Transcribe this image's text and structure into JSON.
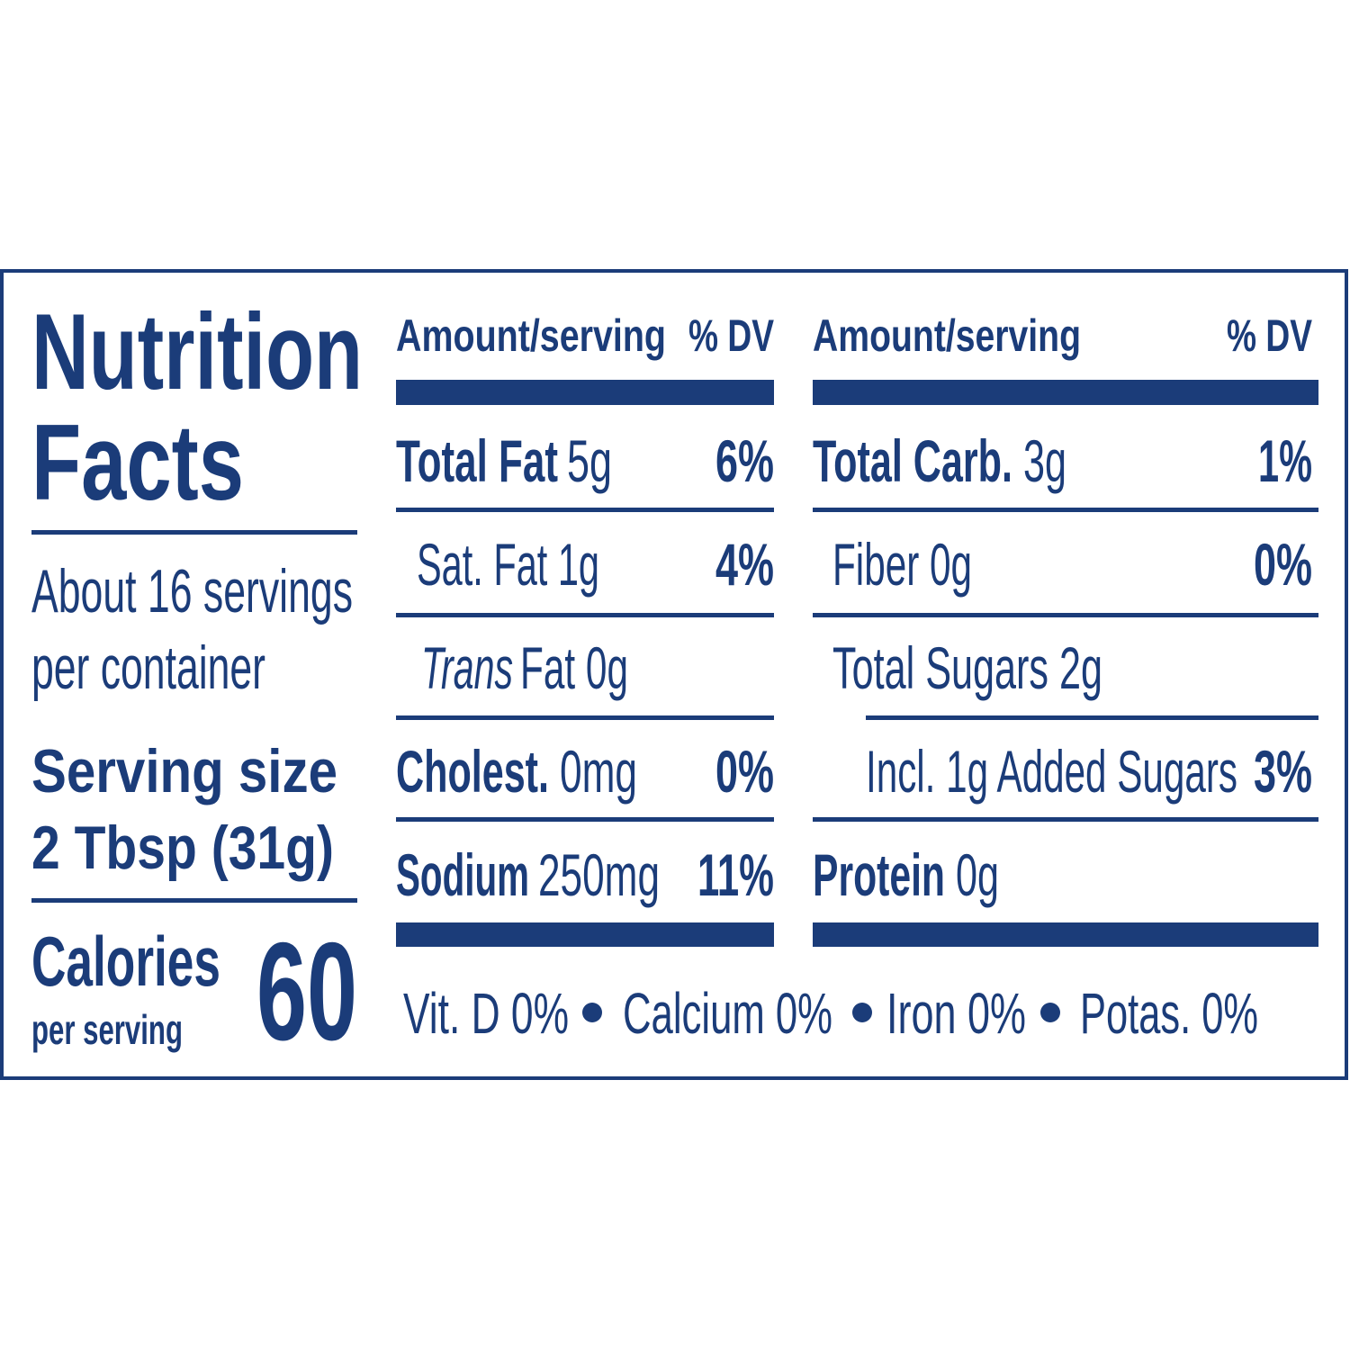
{
  "title": [
    "Nutrition",
    "Facts"
  ],
  "servings": [
    "About 16 servings",
    "per container"
  ],
  "serving_size": {
    "label": "Serving size",
    "amount": "2 Tbsp (31g)"
  },
  "calories": {
    "label": "Calories",
    "sublabel": "per serving",
    "value": "60"
  },
  "columns": [
    {
      "header": {
        "amount": "Amount/serving",
        "dv": "% DV"
      },
      "rows": [
        {
          "name": "Total Fat",
          "amount": "5g",
          "dv": "6%"
        },
        {
          "name": "Sat. Fat 1g",
          "dv": "4%"
        },
        {
          "prefix": "Trans",
          "name": "Fat 0g"
        },
        {
          "name": "Cholest.",
          "amount": "0mg",
          "dv": "0%"
        },
        {
          "name": "Sodium",
          "amount": "250mg",
          "dv": "11%"
        }
      ]
    },
    {
      "header": {
        "amount": "Amount/serving",
        "dv": "% DV"
      },
      "rows": [
        {
          "name": "Total Carb.",
          "amount": "3g",
          "dv": "1%"
        },
        {
          "name": "Fiber 0g",
          "dv": "0%"
        },
        {
          "name": "Total Sugars 2g"
        },
        {
          "name": "Incl. 1g Added Sugars",
          "dv": "3%"
        },
        {
          "name": "Protein",
          "amount": "0g"
        }
      ]
    }
  ],
  "footer": [
    "Vit. D 0%",
    "Calcium 0%",
    "Iron 0%",
    "Potas. 0%"
  ]
}
